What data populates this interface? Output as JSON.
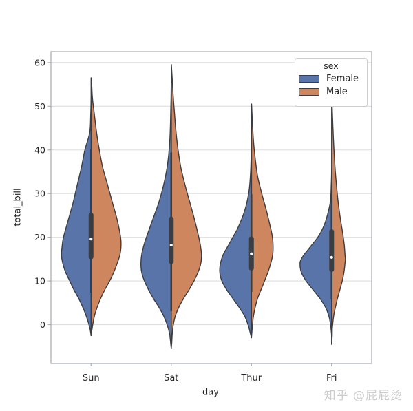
{
  "figure": {
    "watermark": "知乎 @屁屁烫",
    "background": "#ffffff"
  },
  "chart_data": {
    "type": "violin",
    "title": "",
    "xlabel": "day",
    "ylabel": "total_bill",
    "categories": [
      "Sun",
      "Sat",
      "Thur",
      "Fri"
    ],
    "y_ticks": [
      0,
      10,
      20,
      30,
      40,
      50,
      60
    ],
    "ylim": [
      -8.9,
      62.5
    ],
    "grid": true,
    "legend": {
      "title": "sex",
      "position": "upper-right",
      "entries": [
        {
          "label": "Female",
          "color": "#5874a8"
        },
        {
          "label": "Male",
          "color": "#cd865e"
        }
      ]
    },
    "colors": {
      "female": "#5874a8",
      "male": "#cd865e",
      "edge": "#3a3d42",
      "grid": "#dcdee1",
      "spine": "#aab0b6",
      "tick_text": "#262626",
      "median_dot": "#ffffff"
    },
    "violins": [
      {
        "day": "Sun",
        "box": {
          "median": 19.6,
          "q1": 15.0,
          "q3": 25.6,
          "whisker_low": 7.3,
          "whisker_high": 40.2
        },
        "profile": [
          [
            56.5,
            0,
            0.01
          ],
          [
            52,
            0,
            0.034
          ],
          [
            48,
            0.009,
            0.086
          ],
          [
            44,
            0.034,
            0.138
          ],
          [
            40,
            0.155,
            0.207
          ],
          [
            36,
            0.241,
            0.293
          ],
          [
            32,
            0.345,
            0.414
          ],
          [
            28,
            0.448,
            0.534
          ],
          [
            24,
            0.569,
            0.655
          ],
          [
            20,
            0.69,
            0.741
          ],
          [
            18,
            0.724,
            0.75
          ],
          [
            16,
            0.741,
            0.724
          ],
          [
            14,
            0.707,
            0.655
          ],
          [
            12,
            0.638,
            0.569
          ],
          [
            10,
            0.534,
            0.466
          ],
          [
            8,
            0.431,
            0.345
          ],
          [
            6,
            0.31,
            0.241
          ],
          [
            4,
            0.207,
            0.155
          ],
          [
            2,
            0.121,
            0.086
          ],
          [
            0,
            0.052,
            0.043
          ],
          [
            -1.5,
            0.014,
            0.017
          ],
          [
            -2.5,
            0,
            0
          ]
        ]
      },
      {
        "day": "Sat",
        "box": {
          "median": 18.2,
          "q1": 13.9,
          "q3": 24.7,
          "whisker_low": 3.1,
          "whisker_high": 39.4
        },
        "profile": [
          [
            59.5,
            0,
            0.005
          ],
          [
            56,
            0,
            0.026
          ],
          [
            52,
            0.005,
            0.052
          ],
          [
            48,
            0.014,
            0.086
          ],
          [
            44,
            0.026,
            0.121
          ],
          [
            40,
            0.052,
            0.172
          ],
          [
            36,
            0.103,
            0.241
          ],
          [
            32,
            0.19,
            0.345
          ],
          [
            28,
            0.31,
            0.466
          ],
          [
            24,
            0.466,
            0.586
          ],
          [
            20,
            0.621,
            0.69
          ],
          [
            18,
            0.69,
            0.733
          ],
          [
            16,
            0.741,
            0.759
          ],
          [
            14,
            0.759,
            0.741
          ],
          [
            12,
            0.741,
            0.672
          ],
          [
            10,
            0.672,
            0.569
          ],
          [
            8,
            0.569,
            0.448
          ],
          [
            6,
            0.448,
            0.31
          ],
          [
            4,
            0.31,
            0.19
          ],
          [
            2,
            0.19,
            0.103
          ],
          [
            0,
            0.103,
            0.052
          ],
          [
            -2,
            0.043,
            0.026
          ],
          [
            -4,
            0.017,
            0.014
          ],
          [
            -5.5,
            0,
            0
          ]
        ]
      },
      {
        "day": "Thur",
        "box": {
          "median": 16.2,
          "q1": 12.4,
          "q3": 20.2,
          "whisker_low": 7.5,
          "whisker_high": 29.9
        },
        "profile": [
          [
            50.5,
            0,
            0.005
          ],
          [
            46,
            0,
            0.026
          ],
          [
            42,
            0.005,
            0.052
          ],
          [
            38,
            0.01,
            0.095
          ],
          [
            34,
            0.026,
            0.155
          ],
          [
            30,
            0.069,
            0.259
          ],
          [
            26,
            0.172,
            0.379
          ],
          [
            22,
            0.345,
            0.483
          ],
          [
            20,
            0.466,
            0.526
          ],
          [
            18,
            0.586,
            0.543
          ],
          [
            16,
            0.707,
            0.534
          ],
          [
            14,
            0.776,
            0.483
          ],
          [
            12,
            0.793,
            0.414
          ],
          [
            10,
            0.741,
            0.328
          ],
          [
            8,
            0.621,
            0.241
          ],
          [
            6,
            0.466,
            0.155
          ],
          [
            4,
            0.31,
            0.095
          ],
          [
            2,
            0.172,
            0.052
          ],
          [
            0,
            0.086,
            0.026
          ],
          [
            -2,
            0.026,
            0.01
          ],
          [
            -3,
            0,
            0
          ]
        ]
      },
      {
        "day": "Fri",
        "box": {
          "median": 15.4,
          "q1": 12.1,
          "q3": 21.8,
          "whisker_low": 5.8,
          "whisker_high": 29.0
        },
        "profile": [
          [
            52.5,
            0,
            0.005
          ],
          [
            48,
            0,
            0.021
          ],
          [
            44,
            0,
            0.038
          ],
          [
            40,
            0,
            0.06
          ],
          [
            36,
            0,
            0.086
          ],
          [
            32,
            0.009,
            0.121
          ],
          [
            28,
            0.034,
            0.164
          ],
          [
            24,
            0.138,
            0.224
          ],
          [
            22,
            0.224,
            0.259
          ],
          [
            20,
            0.345,
            0.293
          ],
          [
            18,
            0.517,
            0.319
          ],
          [
            16,
            0.69,
            0.336
          ],
          [
            15,
            0.759,
            0.345
          ],
          [
            14,
            0.793,
            0.336
          ],
          [
            12,
            0.759,
            0.31
          ],
          [
            10,
            0.638,
            0.267
          ],
          [
            8,
            0.466,
            0.207
          ],
          [
            6,
            0.293,
            0.147
          ],
          [
            4,
            0.155,
            0.095
          ],
          [
            2,
            0.069,
            0.052
          ],
          [
            0,
            0.026,
            0.026
          ],
          [
            -1,
            0.014,
            0.017
          ],
          [
            -2.5,
            0,
            0.014
          ],
          [
            -4.5,
            0,
            0
          ]
        ]
      }
    ]
  }
}
